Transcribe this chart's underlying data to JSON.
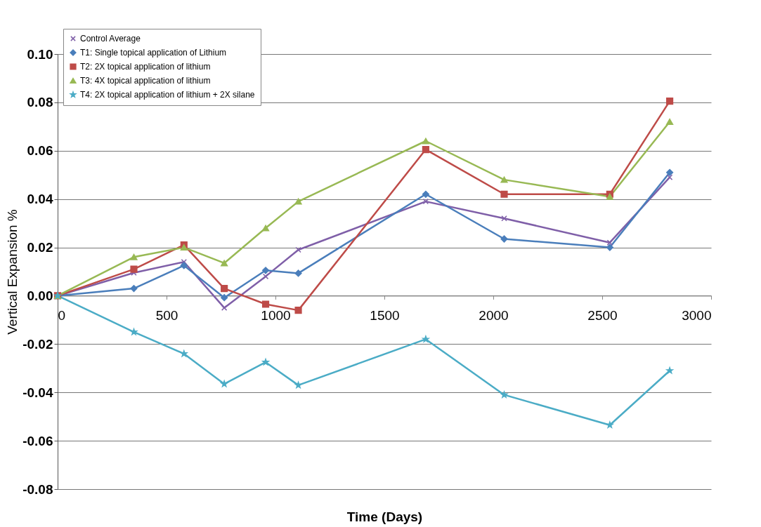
{
  "chart_data": {
    "type": "line",
    "xlabel": "Time (Days)",
    "ylabel": "Vertical  Expansion %",
    "x": [
      0,
      350,
      580,
      765,
      955,
      1105,
      1690,
      2050,
      2535,
      2810
    ],
    "series": [
      {
        "name": "Control Average",
        "color": "#7f5fa8",
        "marker": "cross",
        "values": [
          0,
          0.0095,
          0.014,
          -0.005,
          0.008,
          0.019,
          0.039,
          0.032,
          0.022,
          0.049
        ]
      },
      {
        "name": "T1: Single topical application of Lithium",
        "color": "#4a7ebb",
        "marker": "diamond",
        "values": [
          0,
          0.003,
          0.0125,
          -0.0008,
          0.0105,
          0.0093,
          0.042,
          0.0235,
          0.02,
          0.051
        ]
      },
      {
        "name": "T2: 2X topical application of lithium",
        "color": "#be4b48",
        "marker": "square",
        "values": [
          0,
          0.011,
          0.021,
          0.003,
          -0.0035,
          -0.006,
          0.0605,
          0.042,
          0.042,
          0.0805
        ]
      },
      {
        "name": "T3: 4X topical application of lithium",
        "color": "#98b954",
        "marker": "triangle",
        "values": [
          0,
          0.016,
          0.02,
          0.0135,
          0.028,
          0.039,
          0.064,
          0.048,
          0.041,
          0.072
        ]
      },
      {
        "name": "T4: 2X topical application of lithium + 2X silane",
        "color": "#4bacc6",
        "marker": "star",
        "values": [
          0,
          -0.015,
          -0.024,
          -0.0365,
          -0.0275,
          -0.037,
          -0.018,
          -0.041,
          -0.0535,
          -0.031
        ]
      }
    ],
    "xlim": [
      0,
      3000
    ],
    "xticks": [
      0,
      500,
      1000,
      1500,
      2000,
      2500,
      3000
    ],
    "ylim": [
      -0.08,
      0.1
    ],
    "yticks": [
      {
        "value": -0.08,
        "label": "-0.08"
      },
      {
        "value": -0.06,
        "label": "-0.06"
      },
      {
        "value": -0.04,
        "label": "-0.04"
      },
      {
        "value": -0.02,
        "label": "-0.02"
      },
      {
        "value": 0,
        "label": "0.00"
      },
      {
        "value": 0.02,
        "label": "0.02"
      },
      {
        "value": 0.04,
        "label": "0.04"
      },
      {
        "value": 0.06,
        "label": "0.06"
      },
      {
        "value": 0.08,
        "label": "0.08"
      },
      {
        "value": 0.1,
        "label": "0.10"
      }
    ],
    "grid": "y",
    "legend": "top left",
    "line_style": "solid"
  }
}
